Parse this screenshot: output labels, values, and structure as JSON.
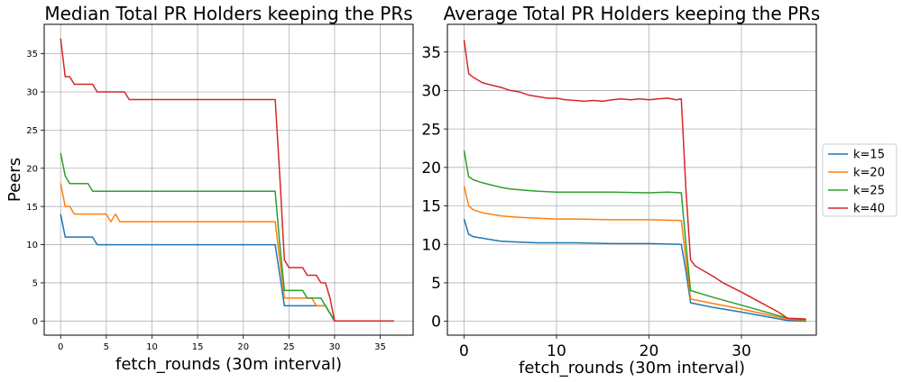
{
  "chart_data": [
    {
      "type": "line",
      "title": "Median Total PR Holders keeping the PRs",
      "xlabel": "fetch_rounds (30m interval)",
      "ylabel": "Peers",
      "xlim": [
        -1.8,
        38.6
      ],
      "ylim": [
        -1.85,
        38.85
      ],
      "xticks": [
        0,
        5,
        10,
        15,
        20,
        25,
        30,
        35
      ],
      "yticks": [
        0,
        5,
        10,
        15,
        20,
        25,
        30,
        35
      ],
      "grid": true,
      "series": [
        {
          "name": "k=15",
          "color": "#1f77b4",
          "points": [
            [
              0,
              14
            ],
            [
              0.5,
              11
            ],
            [
              3.5,
              11
            ],
            [
              4,
              10
            ],
            [
              23.5,
              10
            ],
            [
              24,
              6
            ],
            [
              24.5,
              2
            ],
            [
              29,
              2
            ],
            [
              29.5,
              1
            ],
            [
              30,
              0
            ],
            [
              36.5,
              0
            ]
          ]
        },
        {
          "name": "k=20",
          "color": "#ff7f0e",
          "points": [
            [
              0,
              18
            ],
            [
              0.5,
              15
            ],
            [
              1,
              15
            ],
            [
              1.5,
              14
            ],
            [
              5,
              14
            ],
            [
              5.5,
              13
            ],
            [
              6,
              14
            ],
            [
              6.5,
              13
            ],
            [
              23.5,
              13
            ],
            [
              24,
              8
            ],
            [
              24.5,
              3
            ],
            [
              27.5,
              3
            ],
            [
              28,
              2
            ],
            [
              29,
              2
            ],
            [
              29.5,
              1
            ],
            [
              30,
              0
            ],
            [
              36.5,
              0
            ]
          ]
        },
        {
          "name": "k=25",
          "color": "#2ca02c",
          "points": [
            [
              0,
              22
            ],
            [
              0.5,
              19
            ],
            [
              1,
              18
            ],
            [
              3,
              18
            ],
            [
              3.5,
              17
            ],
            [
              23.5,
              17
            ],
            [
              24,
              10
            ],
            [
              24.5,
              4
            ],
            [
              26.5,
              4
            ],
            [
              27,
              3
            ],
            [
              28.5,
              3
            ],
            [
              29,
              2
            ],
            [
              29.5,
              1
            ],
            [
              30,
              0
            ],
            [
              36.5,
              0
            ]
          ]
        },
        {
          "name": "k=40",
          "color": "#d62728",
          "points": [
            [
              0,
              37
            ],
            [
              0.5,
              32
            ],
            [
              1,
              32
            ],
            [
              1.5,
              31
            ],
            [
              3.5,
              31
            ],
            [
              4,
              30
            ],
            [
              7,
              30
            ],
            [
              7.5,
              29
            ],
            [
              23.5,
              29
            ],
            [
              24,
              19
            ],
            [
              24.5,
              8
            ],
            [
              25,
              7
            ],
            [
              26.5,
              7
            ],
            [
              27,
              6
            ],
            [
              28,
              6
            ],
            [
              28.5,
              5
            ],
            [
              29,
              5
            ],
            [
              29.5,
              3
            ],
            [
              30,
              0
            ],
            [
              36.5,
              0
            ]
          ]
        }
      ]
    },
    {
      "type": "line",
      "title": "Average Total PR Holders keeping the PRs",
      "xlabel": "fetch_rounds (30m interval)",
      "ylabel": "",
      "xlim": [
        -1.8,
        38.1
      ],
      "ylim": [
        -1.8,
        38.6
      ],
      "xticks": [
        0,
        10,
        20,
        30
      ],
      "yticks": [
        0,
        5,
        10,
        15,
        20,
        25,
        30,
        35
      ],
      "grid": true,
      "legend": {
        "position": "right",
        "entries": [
          "k=15",
          "k=20",
          "k=25",
          "k=40"
        ]
      },
      "series": [
        {
          "name": "k=15",
          "color": "#1f77b4",
          "points": [
            [
              0,
              13.3
            ],
            [
              0.5,
              11.3
            ],
            [
              1,
              11
            ],
            [
              2,
              10.8
            ],
            [
              3,
              10.6
            ],
            [
              4,
              10.4
            ],
            [
              6,
              10.3
            ],
            [
              8,
              10.2
            ],
            [
              12,
              10.2
            ],
            [
              16,
              10.1
            ],
            [
              20,
              10.1
            ],
            [
              23.5,
              10
            ],
            [
              24,
              6.5
            ],
            [
              24.5,
              2.4
            ],
            [
              27,
              1.8
            ],
            [
              30,
              1.2
            ],
            [
              35,
              0.1
            ],
            [
              37,
              0
            ]
          ]
        },
        {
          "name": "k=20",
          "color": "#ff7f0e",
          "points": [
            [
              0,
              17.6
            ],
            [
              0.5,
              15
            ],
            [
              1,
              14.5
            ],
            [
              2,
              14.1
            ],
            [
              3,
              13.9
            ],
            [
              4,
              13.7
            ],
            [
              5,
              13.6
            ],
            [
              6,
              13.5
            ],
            [
              8,
              13.4
            ],
            [
              10,
              13.3
            ],
            [
              12,
              13.3
            ],
            [
              16,
              13.2
            ],
            [
              20,
              13.2
            ],
            [
              23.5,
              13.1
            ],
            [
              24,
              8
            ],
            [
              24.5,
              2.9
            ],
            [
              27,
              2.3
            ],
            [
              30,
              1.6
            ],
            [
              35,
              0.3
            ],
            [
              37,
              0.1
            ]
          ]
        },
        {
          "name": "k=25",
          "color": "#2ca02c",
          "points": [
            [
              0,
              22.2
            ],
            [
              0.5,
              18.8
            ],
            [
              1,
              18.4
            ],
            [
              2,
              18
            ],
            [
              3,
              17.7
            ],
            [
              4,
              17.4
            ],
            [
              5,
              17.2
            ],
            [
              6,
              17.1
            ],
            [
              7,
              17
            ],
            [
              8,
              16.9
            ],
            [
              10,
              16.8
            ],
            [
              12,
              16.8
            ],
            [
              16,
              16.8
            ],
            [
              20,
              16.7
            ],
            [
              22,
              16.8
            ],
            [
              23.5,
              16.7
            ],
            [
              24,
              10
            ],
            [
              24.5,
              4
            ],
            [
              27,
              3.1
            ],
            [
              30,
              2.1
            ],
            [
              35,
              0.4
            ],
            [
              37,
              0.2
            ]
          ]
        },
        {
          "name": "k=40",
          "color": "#d62728",
          "points": [
            [
              0,
              36.6
            ],
            [
              0.5,
              32.2
            ],
            [
              1,
              31.7
            ],
            [
              2,
              31
            ],
            [
              3,
              30.7
            ],
            [
              4,
              30.4
            ],
            [
              5,
              30
            ],
            [
              6,
              29.8
            ],
            [
              7,
              29.4
            ],
            [
              8,
              29.2
            ],
            [
              9,
              29
            ],
            [
              10,
              29
            ],
            [
              11,
              28.8
            ],
            [
              12,
              28.7
            ],
            [
              13,
              28.6
            ],
            [
              14,
              28.7
            ],
            [
              15,
              28.6
            ],
            [
              16,
              28.8
            ],
            [
              17,
              28.9
            ],
            [
              18,
              28.8
            ],
            [
              19,
              28.9
            ],
            [
              20,
              28.8
            ],
            [
              21,
              28.9
            ],
            [
              22,
              29
            ],
            [
              23,
              28.8
            ],
            [
              23.5,
              28.9
            ],
            [
              24,
              17
            ],
            [
              24.5,
              8
            ],
            [
              25,
              7.2
            ],
            [
              26,
              6.5
            ],
            [
              27,
              5.8
            ],
            [
              28,
              5
            ],
            [
              30,
              3.8
            ],
            [
              32,
              2.5
            ],
            [
              34,
              1.2
            ],
            [
              35,
              0.4
            ],
            [
              37,
              0.3
            ]
          ]
        }
      ]
    }
  ]
}
